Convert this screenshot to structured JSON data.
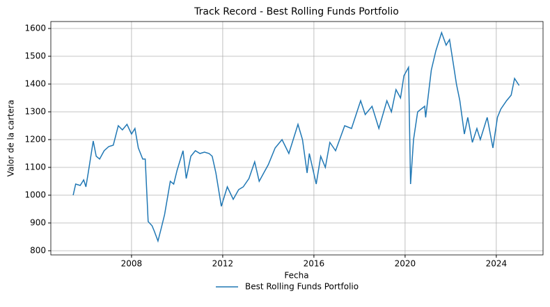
{
  "chart_data": {
    "type": "line",
    "title": "Track Record - Best Rolling Funds Portfolio",
    "x_label": "Fecha",
    "y_label": "Valor de la cartera",
    "x": [
      2005.44,
      2005.55,
      2005.75,
      2005.9,
      2006.0,
      2006.1,
      2006.32,
      2006.45,
      2006.6,
      2006.8,
      2007.0,
      2007.2,
      2007.42,
      2007.6,
      2007.8,
      2008.0,
      2008.15,
      2008.3,
      2008.49,
      2008.6,
      2008.73,
      2008.9,
      2009.0,
      2009.16,
      2009.3,
      2009.45,
      2009.7,
      2009.85,
      2010.0,
      2010.26,
      2010.4,
      2010.6,
      2010.8,
      2011.0,
      2011.2,
      2011.4,
      2011.54,
      2011.7,
      2011.94,
      2012.2,
      2012.46,
      2012.7,
      2012.9,
      2013.15,
      2013.4,
      2013.6,
      2014.0,
      2014.3,
      2014.6,
      2014.9,
      2015.3,
      2015.5,
      2015.7,
      2015.8,
      2016.1,
      2016.3,
      2016.5,
      2016.7,
      2016.95,
      2017.35,
      2017.65,
      2018.05,
      2018.25,
      2018.55,
      2018.85,
      2019.2,
      2019.4,
      2019.6,
      2019.8,
      2019.95,
      2020.15,
      2020.24,
      2020.37,
      2020.55,
      2020.86,
      2020.9,
      2021.15,
      2021.35,
      2021.6,
      2021.8,
      2021.95,
      2022.1,
      2022.25,
      2022.4,
      2022.6,
      2022.75,
      2022.95,
      2023.15,
      2023.3,
      2023.6,
      2023.85,
      2024.05,
      2024.2,
      2024.45,
      2024.65,
      2024.8,
      2025.0
    ],
    "series": [
      {
        "name": "Best Rolling Funds Portfolio",
        "color": "#1f77b4",
        "values": [
          1000,
          1040,
          1035,
          1055,
          1030,
          1080,
          1195,
          1140,
          1130,
          1160,
          1175,
          1180,
          1250,
          1235,
          1255,
          1220,
          1240,
          1170,
          1130,
          1130,
          905,
          890,
          870,
          835,
          880,
          930,
          1050,
          1040,
          1090,
          1160,
          1060,
          1140,
          1160,
          1150,
          1155,
          1150,
          1140,
          1080,
          960,
          1030,
          985,
          1020,
          1030,
          1060,
          1120,
          1050,
          1110,
          1170,
          1200,
          1150,
          1255,
          1200,
          1080,
          1150,
          1040,
          1140,
          1100,
          1190,
          1160,
          1250,
          1240,
          1340,
          1290,
          1320,
          1240,
          1340,
          1300,
          1380,
          1350,
          1430,
          1460,
          1040,
          1200,
          1300,
          1320,
          1280,
          1450,
          1520,
          1585,
          1540,
          1560,
          1480,
          1400,
          1340,
          1220,
          1280,
          1190,
          1240,
          1200,
          1280,
          1170,
          1280,
          1310,
          1340,
          1360,
          1420,
          1395
        ]
      }
    ],
    "xlim": [
      2004.46,
      2026.05
    ],
    "xticks": [
      2008,
      2012,
      2016,
      2020,
      2024
    ],
    "ylim": [
      785,
      1625
    ],
    "yticks": [
      800,
      900,
      1000,
      1100,
      1200,
      1300,
      1400,
      1500,
      1600
    ],
    "grid": true,
    "legend": "lower center"
  }
}
